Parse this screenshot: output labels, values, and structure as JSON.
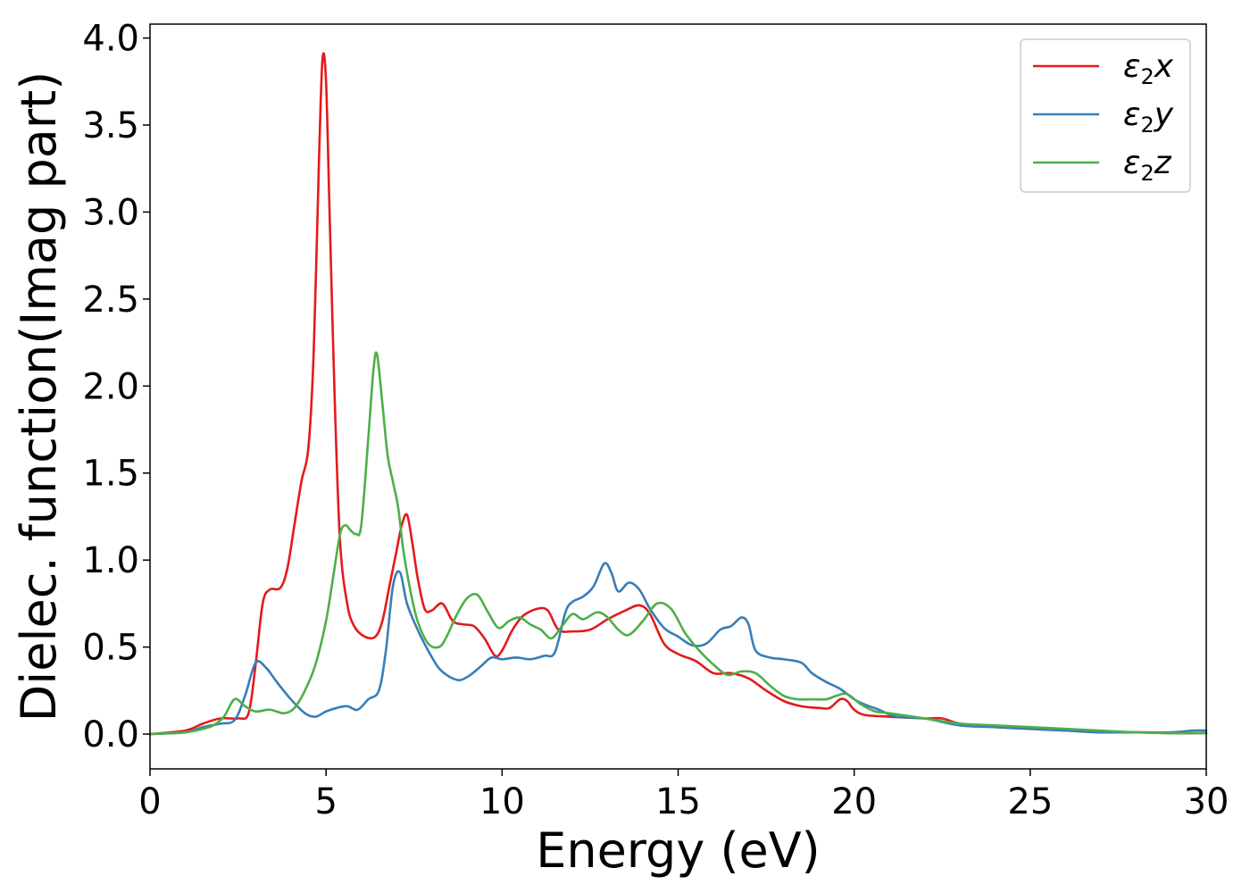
{
  "chart_data": {
    "type": "line",
    "title": "",
    "xlabel": "Energy (eV)",
    "ylabel": "Dielec. function(Imag part)",
    "xlim": [
      0,
      30
    ],
    "ylim": [
      -0.2,
      4.08
    ],
    "xticks": [
      0,
      5,
      10,
      15,
      20,
      25,
      30
    ],
    "yticks": [
      0.0,
      0.5,
      1.0,
      1.5,
      2.0,
      2.5,
      3.0,
      3.5,
      4.0
    ],
    "xtick_labels": [
      "0",
      "5",
      "10",
      "15",
      "20",
      "25",
      "30"
    ],
    "ytick_labels": [
      "0.0",
      "0.5",
      "1.0",
      "1.5",
      "2.0",
      "2.5",
      "3.0",
      "3.5",
      "4.0"
    ],
    "grid": false,
    "legend_position": "top-right",
    "series": [
      {
        "name": "ε2x",
        "legend_base": "ε",
        "legend_sub": "2",
        "legend_tail": "x",
        "color": "#e41a1c",
        "x": [
          0,
          1,
          1.5,
          2,
          2.5,
          2.8,
          3.0,
          3.2,
          3.4,
          3.7,
          3.9,
          4.1,
          4.3,
          4.5,
          4.65,
          4.8,
          4.9,
          5.0,
          5.1,
          5.25,
          5.4,
          5.6,
          5.8,
          6.1,
          6.4,
          6.6,
          6.8,
          7.0,
          7.15,
          7.3,
          7.45,
          7.6,
          7.8,
          8.0,
          8.3,
          8.6,
          8.9,
          9.2,
          9.5,
          9.8,
          10.0,
          10.3,
          10.6,
          11.0,
          11.3,
          11.6,
          12.0,
          12.5,
          13.0,
          13.5,
          13.9,
          14.2,
          14.6,
          15.0,
          15.5,
          16.0,
          16.5,
          17.0,
          17.5,
          18.0,
          18.5,
          19.0,
          19.3,
          19.6,
          19.8,
          20.0,
          20.3,
          21.0,
          22.0,
          22.5,
          23.0,
          24.0,
          25.0,
          26.0,
          27.0,
          28.0,
          29.0,
          30.0
        ],
        "values": [
          0.0,
          0.02,
          0.06,
          0.09,
          0.09,
          0.12,
          0.4,
          0.75,
          0.83,
          0.84,
          0.95,
          1.2,
          1.45,
          1.65,
          2.2,
          3.3,
          3.88,
          3.75,
          3.0,
          1.9,
          1.1,
          0.75,
          0.62,
          0.56,
          0.56,
          0.65,
          0.85,
          1.05,
          1.2,
          1.26,
          1.1,
          0.9,
          0.72,
          0.71,
          0.75,
          0.65,
          0.63,
          0.62,
          0.55,
          0.45,
          0.48,
          0.6,
          0.68,
          0.72,
          0.71,
          0.6,
          0.59,
          0.6,
          0.66,
          0.71,
          0.74,
          0.69,
          0.52,
          0.46,
          0.42,
          0.35,
          0.35,
          0.32,
          0.25,
          0.19,
          0.16,
          0.15,
          0.15,
          0.2,
          0.19,
          0.14,
          0.11,
          0.1,
          0.09,
          0.09,
          0.06,
          0.04,
          0.03,
          0.02,
          0.01,
          0.01,
          0.005,
          0.005
        ]
      },
      {
        "name": "ε2y",
        "legend_base": "ε",
        "legend_sub": "2",
        "legend_tail": "y",
        "color": "#377eb8",
        "x": [
          0,
          1,
          1.5,
          2,
          2.4,
          2.7,
          3.0,
          3.3,
          3.6,
          4.0,
          4.4,
          4.7,
          5.0,
          5.3,
          5.6,
          5.9,
          6.2,
          6.5,
          6.7,
          6.9,
          7.1,
          7.3,
          7.6,
          7.9,
          8.2,
          8.5,
          8.8,
          9.1,
          9.4,
          9.7,
          10.0,
          10.4,
          10.8,
          11.2,
          11.5,
          11.8,
          12.0,
          12.3,
          12.6,
          12.9,
          13.1,
          13.3,
          13.6,
          13.9,
          14.2,
          14.6,
          15.0,
          15.4,
          15.8,
          16.2,
          16.5,
          16.8,
          17.0,
          17.2,
          17.6,
          18.0,
          18.5,
          18.8,
          19.2,
          19.6,
          20.0,
          20.3,
          20.7,
          21.2,
          22.0,
          23.0,
          24.0,
          25.0,
          26.0,
          27.0,
          28.0,
          29.0,
          29.6,
          30.0
        ],
        "values": [
          0.0,
          0.01,
          0.04,
          0.06,
          0.08,
          0.22,
          0.41,
          0.38,
          0.3,
          0.2,
          0.12,
          0.1,
          0.13,
          0.15,
          0.16,
          0.14,
          0.2,
          0.25,
          0.48,
          0.85,
          0.93,
          0.75,
          0.6,
          0.48,
          0.38,
          0.33,
          0.31,
          0.34,
          0.39,
          0.44,
          0.43,
          0.44,
          0.43,
          0.45,
          0.47,
          0.7,
          0.76,
          0.79,
          0.85,
          0.98,
          0.93,
          0.82,
          0.87,
          0.83,
          0.72,
          0.61,
          0.56,
          0.51,
          0.52,
          0.6,
          0.62,
          0.67,
          0.63,
          0.48,
          0.44,
          0.43,
          0.41,
          0.35,
          0.3,
          0.26,
          0.2,
          0.17,
          0.14,
          0.1,
          0.09,
          0.05,
          0.04,
          0.03,
          0.02,
          0.01,
          0.01,
          0.01,
          0.02,
          0.02
        ]
      },
      {
        "name": "ε2z",
        "legend_base": "ε",
        "legend_sub": "2",
        "legend_tail": "z",
        "color": "#4daf4a",
        "x": [
          0,
          1,
          1.5,
          1.8,
          2.1,
          2.4,
          2.7,
          3.0,
          3.4,
          3.8,
          4.1,
          4.4,
          4.7,
          5.0,
          5.2,
          5.4,
          5.55,
          5.7,
          5.85,
          6.0,
          6.2,
          6.35,
          6.45,
          6.6,
          6.75,
          6.9,
          7.05,
          7.2,
          7.4,
          7.6,
          7.9,
          8.2,
          8.4,
          8.7,
          9.0,
          9.3,
          9.6,
          9.9,
          10.2,
          10.5,
          10.8,
          11.1,
          11.4,
          11.7,
          12.0,
          12.3,
          12.7,
          13.0,
          13.3,
          13.6,
          14.0,
          14.4,
          14.8,
          15.2,
          15.6,
          16.0,
          16.4,
          16.8,
          17.2,
          17.6,
          18.0,
          18.4,
          18.8,
          19.2,
          19.5,
          19.8,
          20.2,
          20.6,
          21.0,
          22.0,
          23.0,
          24.0,
          25.0,
          26.0,
          27.0,
          28.0,
          29.0,
          30.0
        ],
        "values": [
          0.0,
          0.01,
          0.03,
          0.05,
          0.1,
          0.2,
          0.16,
          0.13,
          0.14,
          0.12,
          0.15,
          0.25,
          0.4,
          0.65,
          0.9,
          1.15,
          1.2,
          1.17,
          1.15,
          1.2,
          1.7,
          2.1,
          2.18,
          1.9,
          1.6,
          1.45,
          1.3,
          1.05,
          0.82,
          0.65,
          0.52,
          0.5,
          0.55,
          0.68,
          0.78,
          0.8,
          0.7,
          0.61,
          0.65,
          0.67,
          0.63,
          0.6,
          0.55,
          0.62,
          0.69,
          0.66,
          0.7,
          0.67,
          0.6,
          0.57,
          0.65,
          0.75,
          0.72,
          0.58,
          0.48,
          0.4,
          0.34,
          0.36,
          0.35,
          0.28,
          0.22,
          0.2,
          0.2,
          0.2,
          0.22,
          0.23,
          0.17,
          0.13,
          0.12,
          0.09,
          0.06,
          0.05,
          0.04,
          0.03,
          0.02,
          0.01,
          0.005,
          0.005
        ]
      }
    ]
  }
}
